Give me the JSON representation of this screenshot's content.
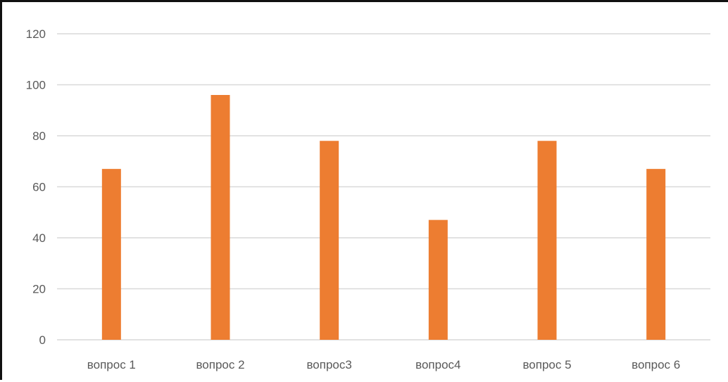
{
  "chart_data": {
    "type": "bar",
    "categories": [
      "вопрос 1",
      "вопрос 2",
      "вопрос3",
      "вопрос4",
      "вопрос 5",
      "вопрос 6"
    ],
    "values": [
      67,
      96,
      78,
      47,
      78,
      67
    ],
    "title": "",
    "xlabel": "",
    "ylabel": "",
    "ylim": [
      0,
      120
    ],
    "yticks": [
      0,
      20,
      40,
      60,
      80,
      100,
      120
    ],
    "grid": true,
    "legend": "none",
    "colors": {
      "bar": "#ED7D31",
      "grid": "#D9D9D9",
      "tick_text": "#595959"
    }
  }
}
